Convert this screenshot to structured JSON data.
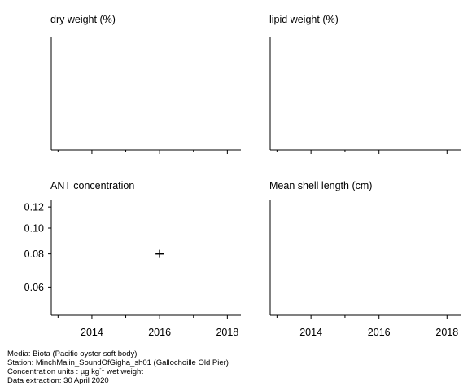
{
  "chart_data": [
    {
      "type": "scatter",
      "title": "dry weight (%)",
      "xlim": [
        2012.8,
        2018.4
      ],
      "x_ticks": [
        2014,
        2016,
        2018
      ],
      "x_tick_labels_shown": false,
      "y_ticks": [],
      "points": []
    },
    {
      "type": "scatter",
      "title": "lipid weight (%)",
      "xlim": [
        2012.8,
        2018.4
      ],
      "x_ticks": [
        2014,
        2016,
        2018
      ],
      "x_tick_labels_shown": false,
      "y_ticks": [],
      "points": []
    },
    {
      "type": "scatter",
      "title": "ANT concentration",
      "xlim": [
        2012.8,
        2018.4
      ],
      "ylim": [
        0.047,
        0.128
      ],
      "log_y": true,
      "x_ticks": [
        2014,
        2016,
        2018
      ],
      "x_tick_labels_shown": true,
      "x_tick_labels": [
        "2014",
        "2016",
        "2018"
      ],
      "y_ticks": [
        0.06,
        0.08,
        0.1,
        0.12
      ],
      "y_tick_labels": [
        "0.06",
        "0.08",
        "0.10",
        "0.12"
      ],
      "marker": "plus",
      "points": [
        {
          "x": 2016,
          "y": 0.08
        }
      ]
    },
    {
      "type": "scatter",
      "title": "Mean shell length (cm)",
      "xlim": [
        2012.8,
        2018.4
      ],
      "x_ticks": [
        2014,
        2016,
        2018
      ],
      "x_tick_labels_shown": true,
      "x_tick_labels": [
        "2014",
        "2016",
        "2018"
      ],
      "y_ticks": [],
      "points": []
    }
  ],
  "footer": {
    "media": "Media: Biota (Pacific oyster soft body)",
    "station": "Station: MinchMalin_SoundOfGigha_sh01 (Gallochoille Old Pier)",
    "units_prefix": "Concentration units : µg kg",
    "units_sup": "-1",
    "units_suffix": " wet weight",
    "extraction": "Data extraction: 30 April 2020"
  }
}
